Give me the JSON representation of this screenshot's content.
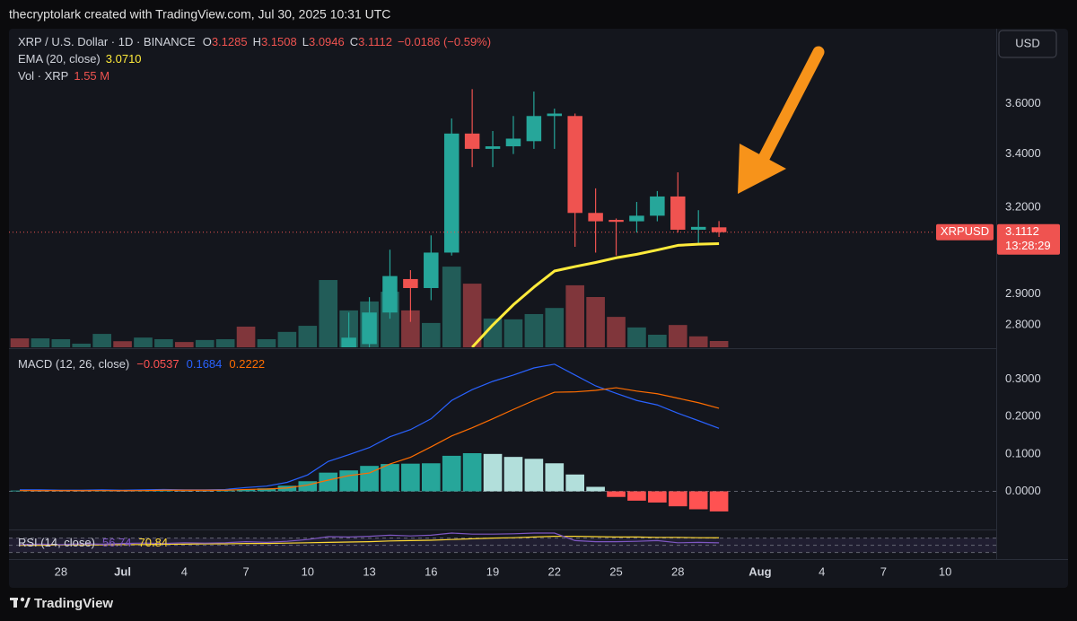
{
  "watermark": "thecryptolark created with TradingView.com, Jul 30, 2025 10:31 UTC",
  "currency_button": "USD",
  "footer": "TradingView",
  "chart_data": [
    {
      "type": "candlestick",
      "title": "XRP / U.S. Dollar · 1D · BINANCE",
      "ohlc_legend": [
        {
          "label": "O",
          "value": 3.1285
        },
        {
          "label": "H",
          "value": 3.1508
        },
        {
          "label": "L",
          "value": 3.0946
        },
        {
          "label": "C",
          "value": 3.1112
        }
      ],
      "change": "−0.0186 (−0.59%)",
      "x": [
        "Jul 12",
        "Jul 13",
        "Jul 14",
        "Jul 15",
        "Jul 16",
        "Jul 17",
        "Jul 18",
        "Jul 19",
        "Jul 20",
        "Jul 21",
        "Jul 22",
        "Jul 23",
        "Jul 24",
        "Jul 25",
        "Jul 26",
        "Jul 27",
        "Jul 28",
        "Jul 29",
        "Jul 30"
      ],
      "open": [
        2.73,
        2.74,
        2.84,
        2.95,
        2.92,
        3.04,
        3.48,
        3.42,
        3.43,
        3.45,
        3.55,
        3.55,
        3.18,
        3.155,
        3.15,
        3.17,
        3.24,
        3.12,
        3.1285
      ],
      "high": [
        2.84,
        2.89,
        3.05,
        2.98,
        3.1,
        3.54,
        3.66,
        3.49,
        3.55,
        3.65,
        3.58,
        3.56,
        3.27,
        3.16,
        3.22,
        3.26,
        3.33,
        3.19,
        3.1508
      ],
      "low": [
        2.7,
        2.72,
        2.82,
        2.81,
        2.88,
        3.03,
        3.35,
        3.35,
        3.4,
        3.42,
        3.42,
        3.06,
        3.04,
        3.03,
        3.11,
        3.15,
        3.11,
        3.07,
        3.0946
      ],
      "close": [
        2.76,
        2.84,
        2.96,
        2.92,
        3.04,
        3.48,
        3.42,
        3.43,
        3.46,
        3.55,
        3.56,
        3.18,
        3.15,
        3.148,
        3.17,
        3.24,
        3.12,
        3.13,
        3.1112
      ],
      "up_color": "#26a69a",
      "down_color": "#ef5350",
      "ylim": [
        2.73,
        3.92
      ],
      "log_scale": true,
      "yticks": [
        {
          "value": 2.8,
          "label": "2.8000"
        },
        {
          "value": 2.9,
          "label": "2.9000"
        },
        {
          "value": 3.2,
          "label": "3.2000"
        },
        {
          "value": 3.4,
          "label": "3.4000"
        },
        {
          "value": 3.6,
          "label": "3.6000"
        }
      ],
      "xlim": [
        "Jun 26",
        "Aug 12"
      ],
      "xticks": [
        {
          "value": "Jun 28",
          "label": "28"
        },
        {
          "value": "Jul 1",
          "label": "Jul"
        },
        {
          "value": "Jul 4",
          "label": "4"
        },
        {
          "value": "Jul 7",
          "label": "7"
        },
        {
          "value": "Jul 10",
          "label": "10"
        },
        {
          "value": "Jul 13",
          "label": "13"
        },
        {
          "value": "Jul 16",
          "label": "16"
        },
        {
          "value": "Jul 19",
          "label": "19"
        },
        {
          "value": "Jul 22",
          "label": "22"
        },
        {
          "value": "Jul 25",
          "label": "25"
        },
        {
          "value": "Jul 28",
          "label": "28"
        },
        {
          "value": "Aug 1",
          "label": "Aug"
        },
        {
          "value": "Aug 4",
          "label": "4"
        },
        {
          "value": "Aug 7",
          "label": "7"
        },
        {
          "value": "Aug 10",
          "label": "10"
        }
      ],
      "last_price": {
        "symbol": "XRPUSD",
        "value": 3.1112,
        "countdown": "13:28:29"
      },
      "series": [
        {
          "name": "EMA (20, close)",
          "color": "#ffeb3b",
          "value_label": "3.0710",
          "x": [
            "Jul 18",
            "Jul 19",
            "Jul 20",
            "Jul 21",
            "Jul 22",
            "Jul 23",
            "Jul 24",
            "Jul 25",
            "Jul 26",
            "Jul 27",
            "Jul 28",
            "Jul 29",
            "Jul 30"
          ],
          "values": [
            2.73,
            2.8,
            2.865,
            2.923,
            2.977,
            2.992,
            3.006,
            3.022,
            3.034,
            3.049,
            3.065,
            3.069,
            3.071
          ]
        }
      ],
      "volume": {
        "name": "Vol · XRP",
        "last_label": "1.55 M",
        "ylim": [
          0,
          78.6
        ],
        "x": [
          "Jun 26",
          "Jun 27",
          "Jun 28",
          "Jun 29",
          "Jun 30",
          "Jul 1",
          "Jul 2",
          "Jul 3",
          "Jul 4",
          "Jul 5",
          "Jul 6",
          "Jul 7",
          "Jul 8",
          "Jul 9",
          "Jul 10",
          "Jul 11",
          "Jul 12",
          "Jul 13",
          "Jul 14",
          "Jul 15",
          "Jul 16",
          "Jul 17",
          "Jul 18",
          "Jul 19",
          "Jul 20",
          "Jul 21",
          "Jul 22",
          "Jul 23",
          "Jul 24",
          "Jul 25",
          "Jul 26",
          "Jul 27",
          "Jul 28",
          "Jul 29",
          "Jul 30"
        ],
        "values": [
          2.2,
          2.2,
          2.0,
          0.9,
          3.3,
          1.5,
          2.4,
          2.0,
          1.3,
          1.8,
          2.0,
          5.1,
          2.0,
          3.8,
          5.3,
          16.6,
          9.1,
          11.3,
          13.7,
          9.1,
          6.0,
          19.9,
          15.7,
          7.1,
          6.9,
          8.2,
          9.7,
          15.3,
          12.4,
          7.5,
          4.9,
          3.1,
          5.5,
          2.7,
          1.55
        ],
        "colors": [
          "#8c3a3f",
          "#24645f",
          "#24645f",
          "#24645f",
          "#24645f",
          "#8c3a3f",
          "#24645f",
          "#24645f",
          "#8c3a3f",
          "#24645f",
          "#24645f",
          "#8c3a3f",
          "#24645f",
          "#24645f",
          "#24645f",
          "#24645f",
          "#24645f",
          "#24645f",
          "#24645f",
          "#8c3a3f",
          "#24645f",
          "#24645f",
          "#8c3a3f",
          "#24645f",
          "#24645f",
          "#24645f",
          "#24645f",
          "#8c3a3f",
          "#8c3a3f",
          "#8c3a3f",
          "#24645f",
          "#24645f",
          "#8c3a3f",
          "#8c3a3f",
          "#8c3a3f"
        ]
      }
    },
    {
      "type": "macd",
      "title": "MACD (12, 26, close)",
      "x": [
        "Jun 26",
        "Jun 27",
        "Jun 28",
        "Jun 29",
        "Jun 30",
        "Jul 1",
        "Jul 2",
        "Jul 3",
        "Jul 4",
        "Jul 5",
        "Jul 6",
        "Jul 7",
        "Jul 8",
        "Jul 9",
        "Jul 10",
        "Jul 11",
        "Jul 12",
        "Jul 13",
        "Jul 14",
        "Jul 15",
        "Jul 16",
        "Jul 17",
        "Jul 18",
        "Jul 19",
        "Jul 20",
        "Jul 21",
        "Jul 22",
        "Jul 23",
        "Jul 24",
        "Jul 25",
        "Jul 26",
        "Jul 27",
        "Jul 28",
        "Jul 29",
        "Jul 30"
      ],
      "histogram": {
        "values": [
          0.002,
          0.002,
          0.001,
          0.001,
          0.002,
          0.001,
          0.002,
          0.002,
          0.001,
          0.001,
          0.002,
          0.005,
          0.008,
          0.015,
          0.027,
          0.05,
          0.056,
          0.068,
          0.073,
          0.074,
          0.075,
          0.095,
          0.102,
          0.1,
          0.092,
          0.087,
          0.075,
          0.045,
          0.012,
          -0.015,
          -0.025,
          -0.03,
          -0.04,
          -0.048,
          -0.0537
        ],
        "colors": [
          "#26a69a",
          "#b2dfdb",
          "#b2dfdb",
          "#b2dfdb",
          "#26a69a",
          "#b2dfdb",
          "#26a69a",
          "#26a69a",
          "#b2dfdb",
          "#b2dfdb",
          "#26a69a",
          "#26a69a",
          "#26a69a",
          "#26a69a",
          "#26a69a",
          "#26a69a",
          "#26a69a",
          "#26a69a",
          "#26a69a",
          "#26a69a",
          "#26a69a",
          "#26a69a",
          "#26a69a",
          "#b2dfdb",
          "#b2dfdb",
          "#b2dfdb",
          "#b2dfdb",
          "#b2dfdb",
          "#b2dfdb",
          "#ff5252",
          "#ff5252",
          "#ff5252",
          "#ff5252",
          "#ff5252",
          "#ff5252"
        ]
      },
      "macd_line": {
        "color": "#2962ff",
        "values": [
          0.004,
          0.004,
          0.003,
          0.003,
          0.004,
          0.003,
          0.004,
          0.005,
          0.004,
          0.004,
          0.005,
          0.01,
          0.014,
          0.024,
          0.044,
          0.08,
          0.098,
          0.117,
          0.146,
          0.165,
          0.194,
          0.243,
          0.272,
          0.294,
          0.311,
          0.33,
          0.34,
          0.311,
          0.282,
          0.262,
          0.243,
          0.231,
          0.209,
          0.189,
          0.1684
        ]
      },
      "signal_line": {
        "color": "#ff6d00",
        "values": [
          0.002,
          0.002,
          0.002,
          0.002,
          0.002,
          0.002,
          0.002,
          0.003,
          0.003,
          0.003,
          0.003,
          0.005,
          0.006,
          0.009,
          0.017,
          0.03,
          0.042,
          0.049,
          0.073,
          0.091,
          0.119,
          0.148,
          0.17,
          0.194,
          0.219,
          0.243,
          0.265,
          0.266,
          0.27,
          0.277,
          0.268,
          0.261,
          0.249,
          0.237,
          0.2222
        ]
      },
      "legend": [
        {
          "value": -0.0537,
          "label": "−0.0537"
        },
        0.1684,
        0.2222
      ],
      "ylim": [
        -0.102,
        0.378
      ],
      "yticks": [
        {
          "value": 0,
          "label": "0.0000"
        },
        {
          "value": 0.1,
          "label": "0.1000"
        },
        {
          "value": 0.2,
          "label": "0.2000"
        },
        {
          "value": 0.3,
          "label": "0.3000"
        }
      ]
    },
    {
      "type": "rsi",
      "title": "RSI (14, close)",
      "x": [
        "Jun 26",
        "Jun 27",
        "Jun 28",
        "Jun 29",
        "Jun 30",
        "Jul 1",
        "Jul 2",
        "Jul 3",
        "Jul 4",
        "Jul 5",
        "Jul 6",
        "Jul 7",
        "Jul 8",
        "Jul 9",
        "Jul 10",
        "Jul 11",
        "Jul 12",
        "Jul 13",
        "Jul 14",
        "Jul 15",
        "Jul 16",
        "Jul 17",
        "Jul 18",
        "Jul 19",
        "Jul 20",
        "Jul 21",
        "Jul 22",
        "Jul 23",
        "Jul 24",
        "Jul 25",
        "Jul 26",
        "Jul 27",
        "Jul 28",
        "Jul 29",
        "Jul 30"
      ],
      "rsi": {
        "color": "#7e57c2",
        "values": [
          52,
          53,
          52,
          54,
          53,
          55,
          56,
          55,
          57,
          56,
          57,
          60,
          58,
          61,
          66,
          74,
          73,
          75,
          78,
          76,
          78,
          84,
          81,
          81,
          82,
          84,
          84,
          63,
          60,
          60,
          61,
          63,
          57,
          58,
          56.74
        ]
      },
      "rsi_ma": {
        "color": "#fdd835",
        "values": [
          50,
          50,
          51,
          51,
          51,
          52,
          52,
          53,
          53,
          54,
          54,
          55,
          55,
          56,
          57,
          58,
          59,
          60,
          62,
          63,
          64,
          66,
          68,
          70,
          71,
          73,
          75,
          75,
          74,
          73,
          73,
          72,
          72,
          71,
          70.84
        ]
      },
      "legend": [
        56.74,
        70.84
      ],
      "ylim": [
        14,
        89
      ],
      "bands": [
        70,
        50,
        30
      ]
    }
  ]
}
